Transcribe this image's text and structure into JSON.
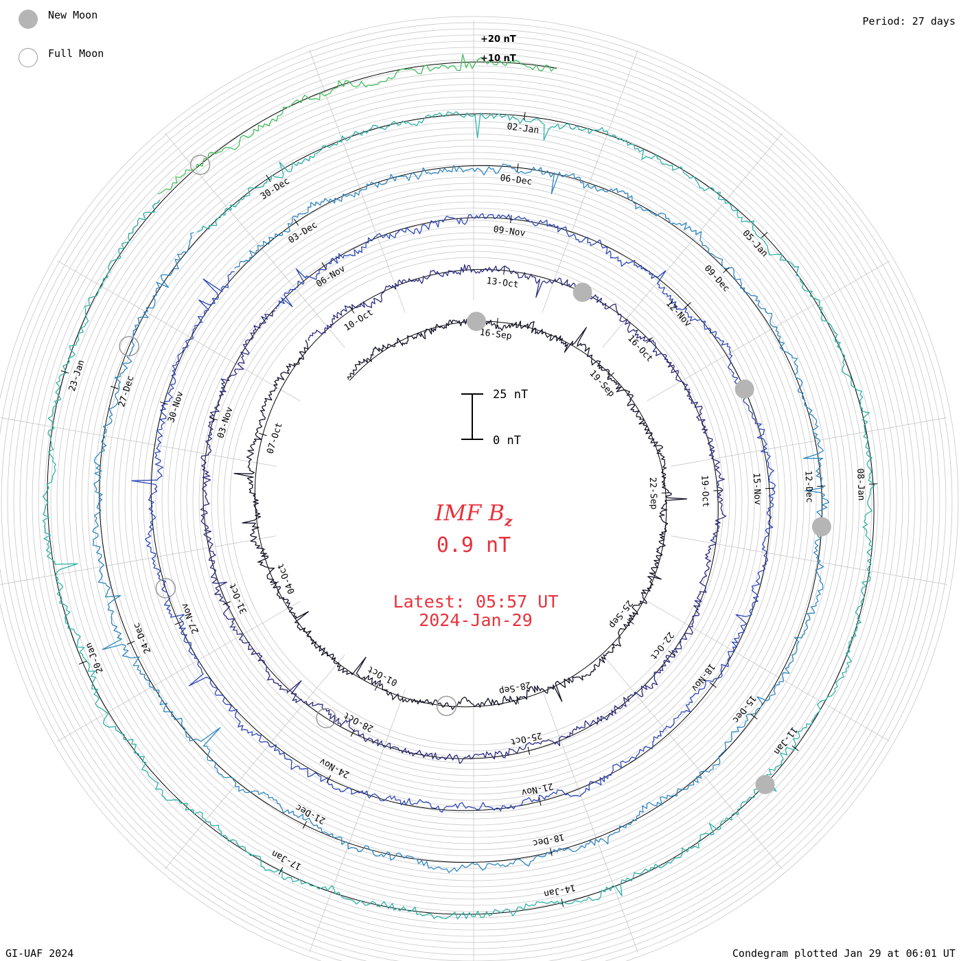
{
  "legend": {
    "new_moon": "New Moon",
    "full_moon": "Full Moon",
    "new_moon_color": "#b5b5b5",
    "full_moon_color": "#9a9a9a"
  },
  "period_label": "Period: 27 days",
  "credit": "GI-UAF 2024",
  "plotted": "Condegram plotted Jan 29 at 06:01 UT",
  "chart_data": {
    "type": "line",
    "layout": "spiral condegram",
    "title": "IMF B",
    "title_sub": "z",
    "value_text": "0.9 nT",
    "latest_text": "Latest: 05:57 UT",
    "latest_date": "2024-Jan-29",
    "scale_bar": {
      "top_label": "25 nT",
      "bottom_label": "0 nT"
    },
    "ring_labels": [
      "+20 nT",
      "+10 nT"
    ],
    "period_days": 27,
    "data_start": "2023-09-12",
    "data_end": "2024-01-29",
    "colors": [
      "#111126",
      "#2a2a7e",
      "#2b47b8",
      "#2d86c0",
      "#2bb1a8",
      "#41bf5b",
      "#9cbe22",
      "#bda51c",
      "#c3671a",
      "#bf1616"
    ],
    "tick_labels": [
      "16-Sep",
      "19-Sep",
      "22-Sep",
      "25-Sep",
      "28-Sep",
      "01-Oct",
      "04-Oct",
      "07-Oct",
      "10-Oct",
      "13-Oct",
      "16-Oct",
      "19-Oct",
      "22-Oct",
      "25-Oct",
      "28-Oct",
      "31-Oct",
      "03-Nov",
      "06-Nov",
      "09-Nov",
      "12-Nov",
      "15-Nov",
      "18-Nov",
      "21-Nov",
      "24-Nov",
      "27-Nov",
      "30-Nov",
      "03-Dec",
      "06-Dec",
      "09-Dec",
      "12-Dec",
      "15-Dec",
      "18-Dec",
      "21-Dec",
      "24-Dec",
      "27-Dec",
      "30-Dec",
      "02-Jan",
      "05-Jan",
      "08-Jan",
      "11-Jan",
      "14-Jan",
      "17-Jan",
      "20-Jan",
      "23-Jan"
    ],
    "new_moons": [
      "2023-09-15",
      "2023-10-14",
      "2023-11-13",
      "2023-12-12",
      "2024-01-11"
    ],
    "full_moons": [
      "2023-09-29",
      "2023-10-28",
      "2023-11-27",
      "2023-12-27",
      "2024-01-25"
    ]
  }
}
